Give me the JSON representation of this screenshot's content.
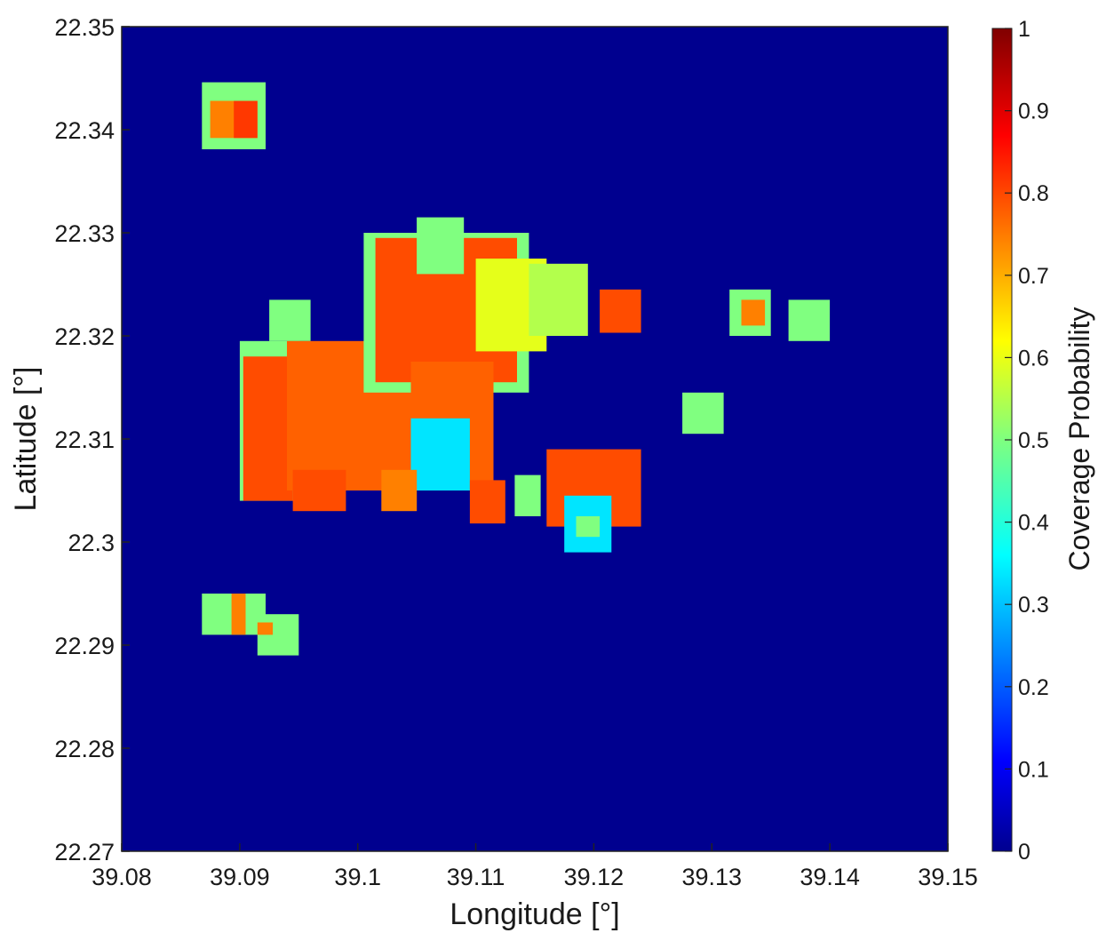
{
  "chart_data": {
    "type": "heatmap",
    "title": "",
    "xlabel": "Longitude [°]",
    "ylabel": "Latitude [°]",
    "xlim": [
      39.08,
      39.15
    ],
    "ylim": [
      22.27,
      22.35
    ],
    "x_ticks": [
      "39.08",
      "39.09",
      "39.1",
      "39.11",
      "39.12",
      "39.13",
      "39.14",
      "39.15"
    ],
    "x_tick_values": [
      39.08,
      39.09,
      39.1,
      39.11,
      39.12,
      39.13,
      39.14,
      39.15
    ],
    "y_ticks": [
      "22.27",
      "22.28",
      "22.29",
      "22.3",
      "22.31",
      "22.32",
      "22.33",
      "22.34",
      "22.35"
    ],
    "y_tick_values": [
      22.27,
      22.28,
      22.29,
      22.3,
      22.31,
      22.32,
      22.33,
      22.34,
      22.35
    ],
    "colorbar": {
      "label": "Coverage Probability",
      "range": [
        0,
        1
      ],
      "colormap": "jet",
      "ticks": [
        "0",
        "0.1",
        "0.2",
        "0.3",
        "0.4",
        "0.5",
        "0.6",
        "0.7",
        "0.8",
        "0.9",
        "1"
      ],
      "tick_values": [
        0,
        0.1,
        0.2,
        0.3,
        0.4,
        0.5,
        0.6,
        0.7,
        0.8,
        0.9,
        1
      ]
    },
    "background_value": 0,
    "grid": false,
    "regions": [
      {
        "lon": [
          39.0868,
          39.0922
        ],
        "lat": [
          22.3381,
          22.3446
        ],
        "value": 0.5
      },
      {
        "lon": [
          39.0875,
          39.0915
        ],
        "lat": [
          22.3392,
          22.3428
        ],
        "value": 0.75
      },
      {
        "lon": [
          39.0895,
          39.0915
        ],
        "lat": [
          22.3392,
          22.3428
        ],
        "value": 0.82
      },
      {
        "lon": [
          39.09,
          39.0951
        ],
        "lat": [
          22.304,
          22.3195
        ],
        "value": 0.5
      },
      {
        "lon": [
          39.0903,
          39.0945
        ],
        "lat": [
          22.304,
          22.318
        ],
        "value": 0.8
      },
      {
        "lon": [
          39.0925,
          39.096
        ],
        "lat": [
          22.3195,
          22.3235
        ],
        "value": 0.5
      },
      {
        "lon": [
          39.094,
          39.105
        ],
        "lat": [
          22.305,
          22.3195
        ],
        "value": 0.78
      },
      {
        "lon": [
          39.0945,
          39.099
        ],
        "lat": [
          22.303,
          22.307
        ],
        "value": 0.8
      },
      {
        "lon": [
          39.1005,
          39.1145
        ],
        "lat": [
          22.3145,
          22.33
        ],
        "value": 0.5
      },
      {
        "lon": [
          39.1015,
          39.1135
        ],
        "lat": [
          22.3155,
          22.3295
        ],
        "value": 0.8
      },
      {
        "lon": [
          39.105,
          39.109
        ],
        "lat": [
          22.326,
          22.3315
        ],
        "value": 0.5
      },
      {
        "lon": [
          39.11,
          39.116
        ],
        "lat": [
          22.3185,
          22.3275
        ],
        "value": 0.6
      },
      {
        "lon": [
          39.1145,
          39.1195
        ],
        "lat": [
          22.32,
          22.327
        ],
        "value": 0.55
      },
      {
        "lon": [
          39.1045,
          39.1115
        ],
        "lat": [
          22.305,
          22.3175
        ],
        "value": 0.78
      },
      {
        "lon": [
          39.1045,
          39.1095
        ],
        "lat": [
          22.305,
          22.312
        ],
        "value": 0.35
      },
      {
        "lon": [
          39.1095,
          39.1125
        ],
        "lat": [
          22.3018,
          22.306
        ],
        "value": 0.8
      },
      {
        "lon": [
          39.102,
          39.105
        ],
        "lat": [
          22.303,
          22.307
        ],
        "value": 0.75
      },
      {
        "lon": [
          39.1205,
          39.124
        ],
        "lat": [
          22.3203,
          22.3245
        ],
        "value": 0.8
      },
      {
        "lon": [
          39.1133,
          39.1155
        ],
        "lat": [
          22.3025,
          22.3065
        ],
        "value": 0.5
      },
      {
        "lon": [
          39.116,
          39.124
        ],
        "lat": [
          22.3015,
          22.309
        ],
        "value": 0.8
      },
      {
        "lon": [
          39.1175,
          39.1215
        ],
        "lat": [
          22.299,
          22.3045
        ],
        "value": 0.35
      },
      {
        "lon": [
          39.1185,
          39.1205
        ],
        "lat": [
          22.3005,
          22.3025
        ],
        "value": 0.5
      },
      {
        "lon": [
          39.1275,
          39.131
        ],
        "lat": [
          22.3105,
          22.3145
        ],
        "value": 0.5
      },
      {
        "lon": [
          39.1315,
          39.135
        ],
        "lat": [
          22.32,
          22.3245
        ],
        "value": 0.5
      },
      {
        "lon": [
          39.1325,
          39.1345
        ],
        "lat": [
          22.321,
          22.3235
        ],
        "value": 0.75
      },
      {
        "lon": [
          39.1365,
          39.14
        ],
        "lat": [
          22.3195,
          22.3235
        ],
        "value": 0.5
      },
      {
        "lon": [
          39.0868,
          39.0922
        ],
        "lat": [
          22.291,
          22.295
        ],
        "value": 0.5
      },
      {
        "lon": [
          39.0893,
          39.0905
        ],
        "lat": [
          22.291,
          22.295
        ],
        "value": 0.75
      },
      {
        "lon": [
          39.0915,
          39.095
        ],
        "lat": [
          22.289,
          22.293
        ],
        "value": 0.5
      },
      {
        "lon": [
          39.0915,
          39.0928
        ],
        "lat": [
          22.291,
          22.2922
        ],
        "value": 0.75
      }
    ]
  }
}
